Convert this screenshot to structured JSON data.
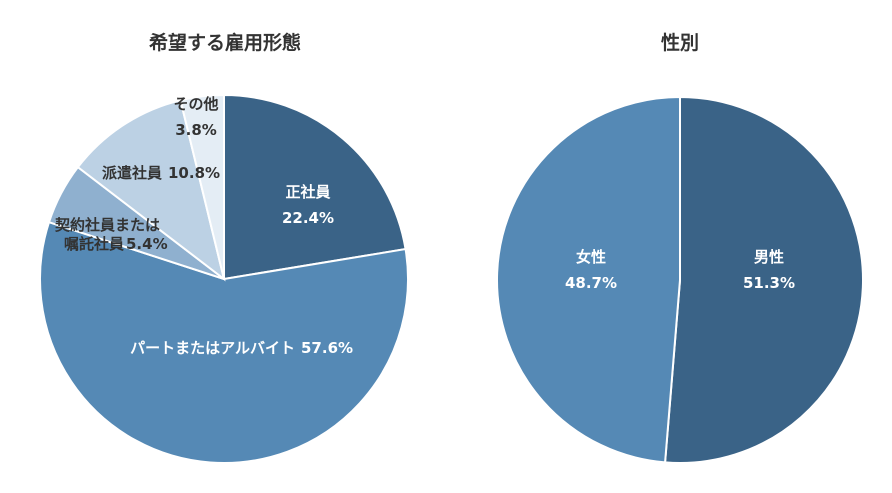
{
  "chart_data": [
    {
      "type": "pie",
      "title": "希望する雇用形態",
      "slices": [
        {
          "label": "正社員",
          "value": 22.4,
          "display": "22.4%",
          "color": "#3a6387"
        },
        {
          "label": "パートまたはアルバイト",
          "value": 57.6,
          "display": "57.6%",
          "color": "#5589b5"
        },
        {
          "label": "契約社員または嘱託社員",
          "value": 5.4,
          "display": "5.4%",
          "color": "#8fb0cf"
        },
        {
          "label": "派遣社員",
          "value": 10.8,
          "display": "10.8%",
          "color": "#bcd1e4"
        },
        {
          "label": "その他",
          "value": 3.8,
          "display": "3.8%",
          "color": "#e4edf5"
        }
      ]
    },
    {
      "type": "pie",
      "title": "性別",
      "slices": [
        {
          "label": "男性",
          "value": 51.3,
          "display": "51.3%",
          "color": "#3a6387"
        },
        {
          "label": "女性",
          "value": 48.7,
          "display": "48.7%",
          "color": "#5589b5"
        }
      ]
    }
  ]
}
